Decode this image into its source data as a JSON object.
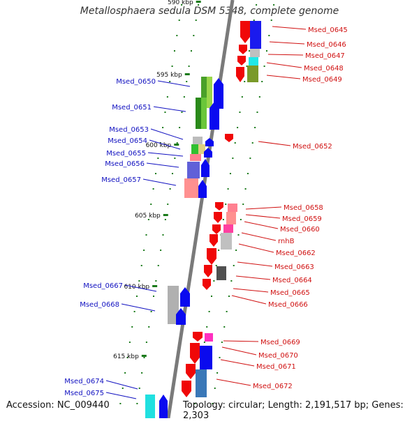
{
  "title": "Metallosphaera sedula DSM 5348, complete genome",
  "footer": {
    "accession": "Accession: NC_009440",
    "summary": "Topology: circular; Length: 2,191,517 bp; Genes: 2,303"
  },
  "colors": {
    "backbone": "#7a7a7a",
    "tick": "#1a7a1a",
    "plus_label": "#1010c0",
    "minus_label": "#d01010",
    "plus_arrow": "#0a0af0",
    "minus_arrow": "#f00808"
  },
  "scale_labels": [
    "590 kbp",
    "595 kbp",
    "600 kbp",
    "605 kbp",
    "610 kbp",
    "615 kbp"
  ],
  "plus_genes": [
    "Msed_0650",
    "Msed_0651",
    "Msed_0653",
    "Msed_0654",
    "Msed_0655",
    "Msed_0656",
    "Msed_0657",
    "Msed_0667",
    "Msed_0668",
    "Msed_0674",
    "Msed_0675"
  ],
  "minus_genes": [
    "Msed_0645",
    "Msed_0646",
    "Msed_0647",
    "Msed_0648",
    "Msed_0649",
    "Msed_0652",
    "Msed_0658",
    "Msed_0659",
    "Msed_0660",
    "rnhB",
    "Msed_0662",
    "Msed_0663",
    "Msed_0664",
    "Msed_0665",
    "Msed_0666",
    "Msed_0669",
    "Msed_0670",
    "Msed_0671",
    "Msed_0672"
  ]
}
